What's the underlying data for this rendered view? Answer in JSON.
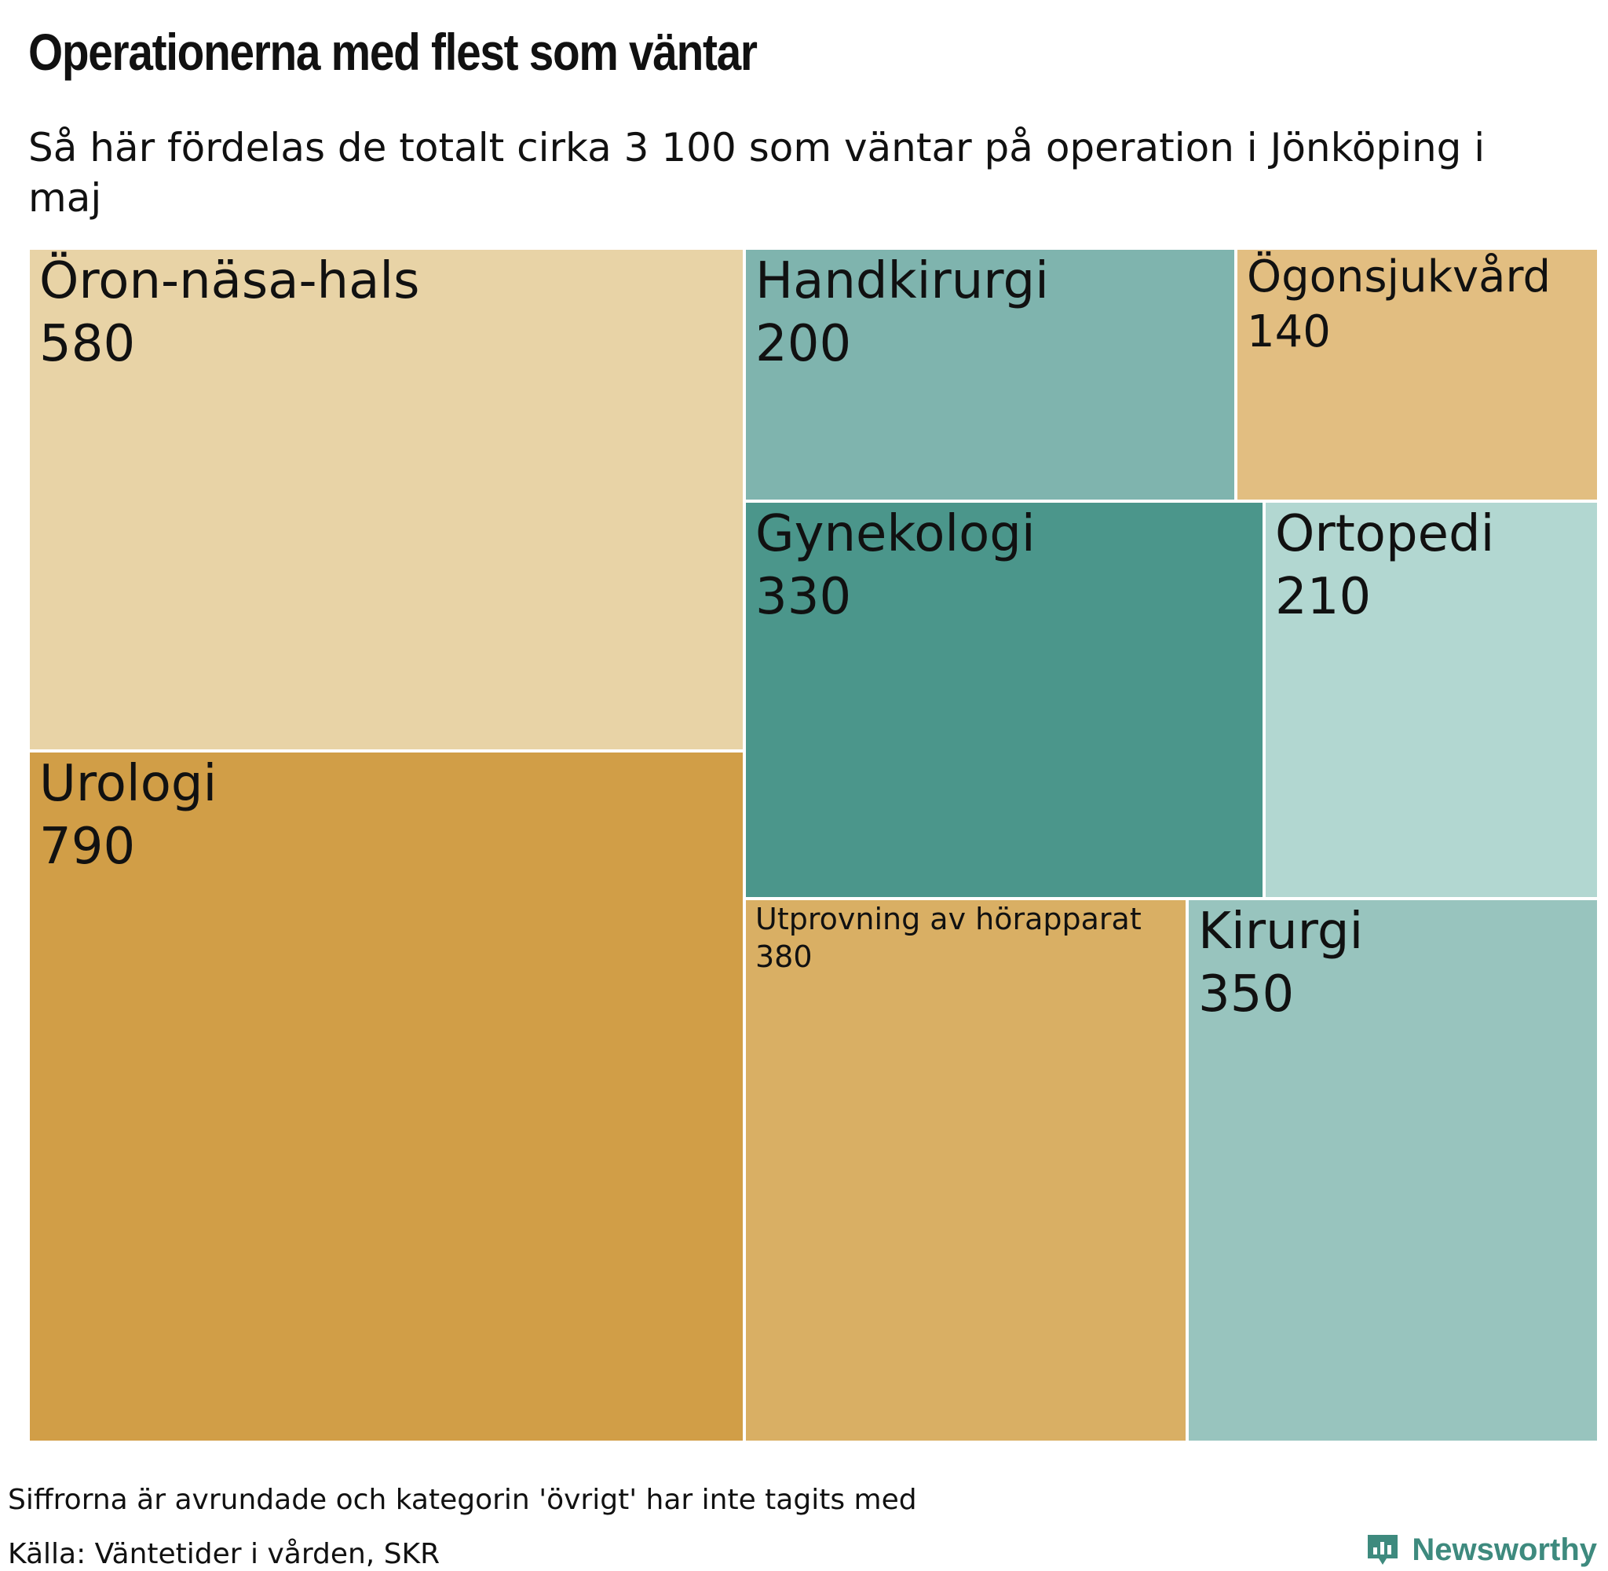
{
  "title": "Operationerna med flest som väntar",
  "subtitle": "Så här fördelas de totalt cirka 3 100 som väntar på operation i Jönköping i maj",
  "note": "Siffrorna är avrundade och kategorin 'övrigt' har inte tagits med",
  "source": "Källa: Väntetider i vården, SKR",
  "brand": {
    "name": "Newsworthy",
    "icon": "newsworthy-logo-icon",
    "color": "#3e8a7e"
  },
  "chart_data": {
    "type": "treemap",
    "items": [
      {
        "label": "Öron-näsa-hals",
        "value": 580,
        "value_label": "580",
        "color": "#e8d3a6"
      },
      {
        "label": "Urologi",
        "value": 790,
        "value_label": "790",
        "color": "#d19e47"
      },
      {
        "label": "Handkirurgi",
        "value": 200,
        "value_label": "200",
        "color": "#7fb4ae"
      },
      {
        "label": "Ögonsjukvård",
        "value": 140,
        "value_label": "140",
        "color": "#e2be81"
      },
      {
        "label": "Gynekologi",
        "value": 330,
        "value_label": "330",
        "color": "#4b968b"
      },
      {
        "label": "Ortopedi",
        "value": 210,
        "value_label": "210",
        "color": "#b2d7d1"
      },
      {
        "label": "Utprovning av hörapparat",
        "value": 380,
        "value_label": "380",
        "color": "#d9af64"
      },
      {
        "label": "Kirurgi",
        "value": 350,
        "value_label": "350",
        "color": "#98c4be"
      }
    ]
  }
}
